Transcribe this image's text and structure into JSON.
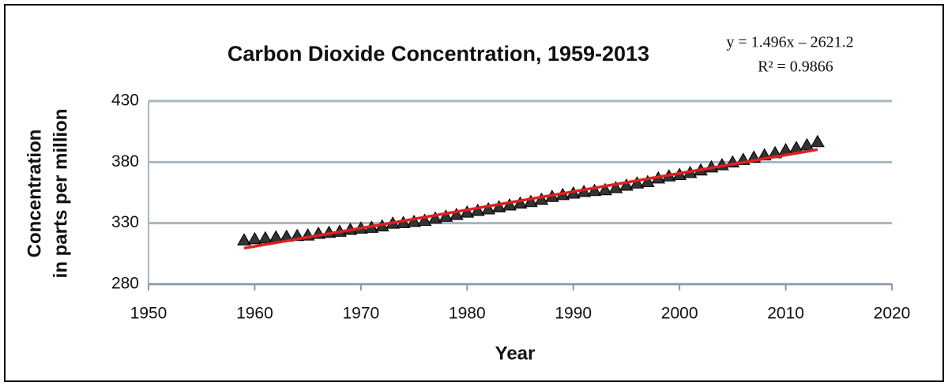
{
  "chart_data": {
    "type": "scatter",
    "title": "Carbon Dioxide Concentration, 1959-2013",
    "annotations": [
      "y = 1.496x – 2621.2",
      "R² = 0.9866"
    ],
    "x_label": "Year",
    "y_label": [
      "Concentration",
      "in parts per million"
    ],
    "x": [
      1959,
      1960,
      1961,
      1962,
      1963,
      1964,
      1965,
      1966,
      1967,
      1968,
      1969,
      1970,
      1971,
      1972,
      1973,
      1974,
      1975,
      1976,
      1977,
      1978,
      1979,
      1980,
      1981,
      1982,
      1983,
      1984,
      1985,
      1986,
      1987,
      1988,
      1989,
      1990,
      1991,
      1992,
      1993,
      1994,
      1995,
      1996,
      1997,
      1998,
      1999,
      2000,
      2001,
      2002,
      2003,
      2004,
      2005,
      2006,
      2007,
      2008,
      2009,
      2010,
      2011,
      2012,
      2013
    ],
    "series": [
      {
        "color": "#333333",
        "marker": "triangle",
        "values": [
          315.97,
          316.91,
          317.64,
          318.45,
          318.99,
          319.62,
          320.04,
          321.37,
          322.18,
          323.05,
          324.62,
          325.68,
          326.32,
          327.45,
          329.68,
          330.18,
          331.11,
          332.04,
          333.83,
          335.4,
          336.84,
          338.75,
          340.11,
          341.45,
          343.05,
          344.65,
          346.12,
          347.42,
          349.19,
          351.57,
          353.12,
          354.39,
          355.61,
          356.45,
          357.1,
          358.83,
          360.82,
          362.61,
          363.73,
          366.7,
          368.38,
          369.55,
          371.14,
          373.28,
          375.8,
          377.52,
          379.8,
          381.9,
          383.79,
          385.6,
          387.43,
          389.9,
          391.65,
          393.85,
          396.52
        ]
      }
    ],
    "trendline": {
      "x": [
        1959,
        2013
      ],
      "values": [
        309.46,
        390.25
      ],
      "color": "#e02020"
    },
    "xlim": [
      1950,
      2020
    ],
    "xticks": [
      1950,
      1960,
      1970,
      1980,
      1990,
      2000,
      2010,
      2020
    ],
    "ylim": [
      280,
      430
    ],
    "yticks": [
      280,
      330,
      380,
      430
    ],
    "grid": true
  }
}
